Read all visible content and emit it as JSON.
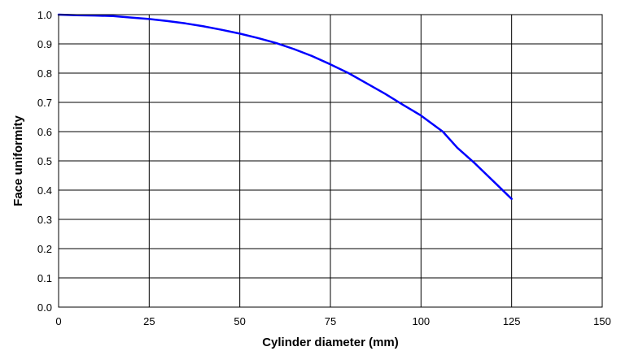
{
  "chart_data": {
    "type": "line",
    "title": "",
    "xlabel": "Cylinder diameter (mm)",
    "ylabel": "Face uniformity",
    "xlim": [
      0,
      150
    ],
    "ylim": [
      0,
      1.0
    ],
    "x_ticks": [
      "0",
      "25",
      "50",
      "75",
      "100",
      "125",
      "150"
    ],
    "y_ticks": [
      "0.0",
      "0.1",
      "0.2",
      "0.3",
      "0.4",
      "0.5",
      "0.6",
      "0.7",
      "0.8",
      "0.9",
      "1.0"
    ],
    "grid": true,
    "series": [
      {
        "color": "#0000ff",
        "x": [
          0,
          5,
          10,
          15,
          20,
          25,
          30,
          35,
          40,
          45,
          50,
          55,
          60,
          65,
          70,
          75,
          80,
          85,
          90,
          95,
          100,
          106,
          110,
          115,
          120,
          125
        ],
        "y": [
          1.0,
          0.998,
          0.997,
          0.995,
          0.99,
          0.985,
          0.978,
          0.97,
          0.96,
          0.948,
          0.935,
          0.92,
          0.903,
          0.882,
          0.858,
          0.83,
          0.8,
          0.765,
          0.73,
          0.692,
          0.655,
          0.6,
          0.545,
          0.49,
          0.43,
          0.37
        ]
      }
    ]
  }
}
